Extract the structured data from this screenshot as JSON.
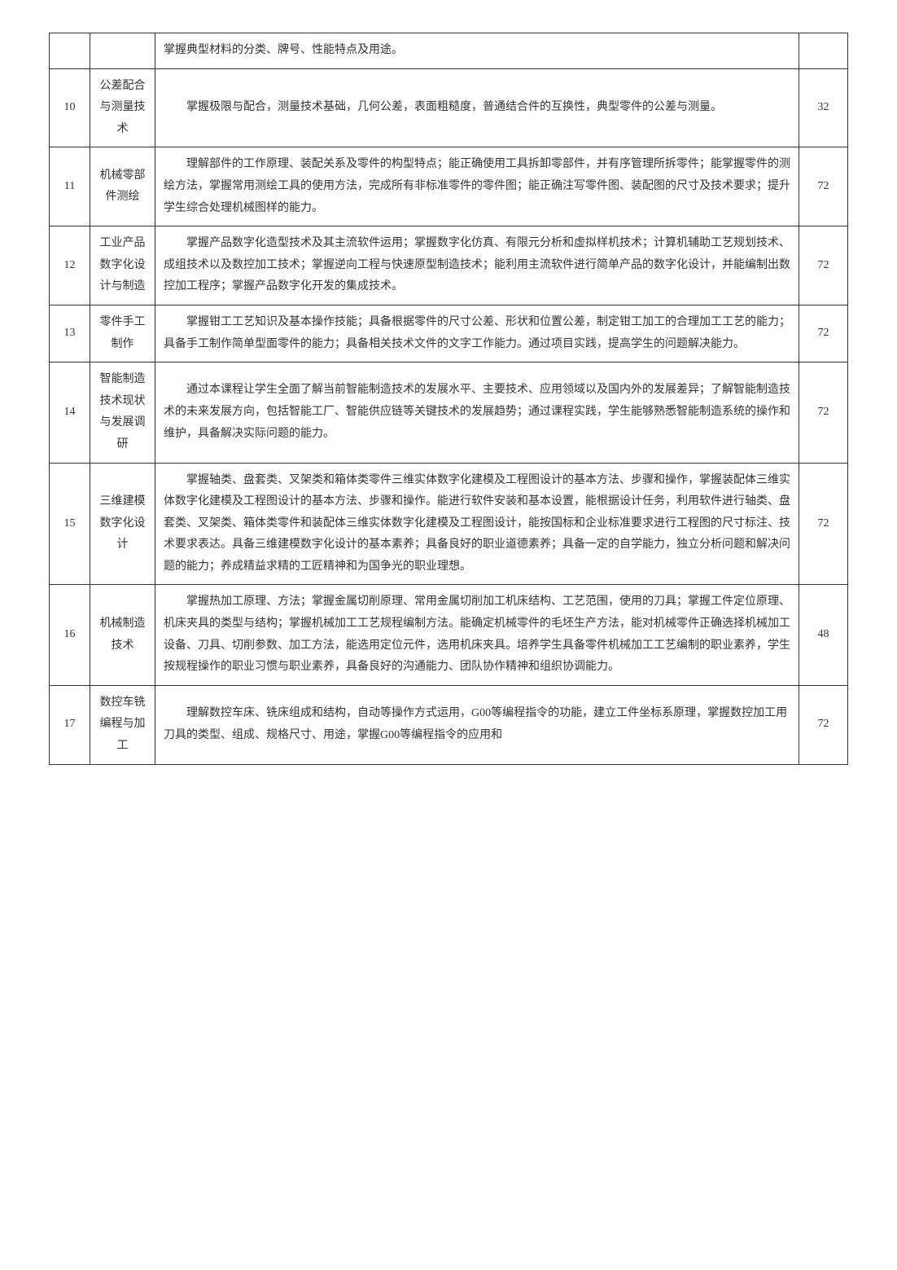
{
  "table": {
    "rows": [
      {
        "num": "",
        "name": "",
        "desc": "掌握典型材料的分类、牌号、性能特点及用途。",
        "hours": "",
        "isFirst": true
      },
      {
        "num": "10",
        "name": "公差配合与测量技术",
        "desc": "掌握极限与配合，测量技术基础，几何公差，表面粗糙度，普通结合件的互换性，典型零件的公差与测量。",
        "hours": "32"
      },
      {
        "num": "11",
        "name": "机械零部件测绘",
        "desc": "理解部件的工作原理、装配关系及零件的构型特点；能正确使用工具拆卸零部件，并有序管理所拆零件；能掌握零件的测绘方法，掌握常用测绘工具的使用方法，完成所有非标准零件的零件图；能正确注写零件图、装配图的尺寸及技术要求；提升学生综合处理机械图样的能力。",
        "hours": "72"
      },
      {
        "num": "12",
        "name": "工业产品数字化设计与制造",
        "desc": "掌握产品数字化造型技术及其主流软件运用；掌握数字化仿真、有限元分析和虚拟样机技术；计算机辅助工艺规划技术、成组技术以及数控加工技术；掌握逆向工程与快速原型制造技术；能利用主流软件进行简单产品的数字化设计，并能编制出数控加工程序；掌握产品数字化开发的集成技术。",
        "hours": "72"
      },
      {
        "num": "13",
        "name": "零件手工制作",
        "desc": "掌握钳工工艺知识及基本操作技能；具备根据零件的尺寸公差、形状和位置公差，制定钳工加工的合理加工工艺的能力；具备手工制作简单型面零件的能力；具备相关技术文件的文字工作能力。通过项目实践，提高学生的问题解决能力。",
        "hours": "72"
      },
      {
        "num": "14",
        "name": "智能制造技术现状与发展调研",
        "desc": "通过本课程让学生全面了解当前智能制造技术的发展水平、主要技术、应用领域以及国内外的发展差异；了解智能制造技术的未来发展方向，包括智能工厂、智能供应链等关键技术的发展趋势；通过课程实践，学生能够熟悉智能制造系统的操作和维护，具备解决实际问题的能力。",
        "hours": "72"
      },
      {
        "num": "15",
        "name": "三维建模数字化设计",
        "desc": "掌握轴类、盘套类、叉架类和箱体类零件三维实体数字化建模及工程图设计的基本方法、步骤和操作，掌握装配体三维实体数字化建模及工程图设计的基本方法、步骤和操作。能进行软件安装和基本设置，能根据设计任务，利用软件进行轴类、盘套类、叉架类、箱体类零件和装配体三维实体数字化建模及工程图设计，能按国标和企业标准要求进行工程图的尺寸标注、技术要求表达。具备三维建模数字化设计的基本素养；具备良好的职业道德素养；具备一定的自学能力，独立分析问题和解决问题的能力；养成精益求精的工匠精神和为国争光的职业理想。",
        "hours": "72"
      },
      {
        "num": "16",
        "name": "机械制造技术",
        "desc": "掌握热加工原理、方法；掌握金属切削原理、常用金属切削加工机床结构、工艺范围，使用的刀具；掌握工件定位原理、机床夹具的类型与结构；掌握机械加工工艺规程编制方法。能确定机械零件的毛坯生产方法，能对机械零件正确选择机械加工设备、刀具、切削参数、加工方法，能选用定位元件，选用机床夹具。培养学生具备零件机械加工工艺编制的职业素养，学生按规程操作的职业习惯与职业素养，具备良好的沟通能力、团队协作精神和组织协调能力。",
        "hours": "48"
      },
      {
        "num": "17",
        "name": "数控车铣编程与加工",
        "desc": "理解数控车床、铣床组成和结构，自动等操作方式运用，G00等编程指令的功能，建立工件坐标系原理，掌握数控加工用刀具的类型、组成、规格尺寸、用途，掌握G00等编程指令的应用和",
        "hours": "72"
      }
    ]
  }
}
